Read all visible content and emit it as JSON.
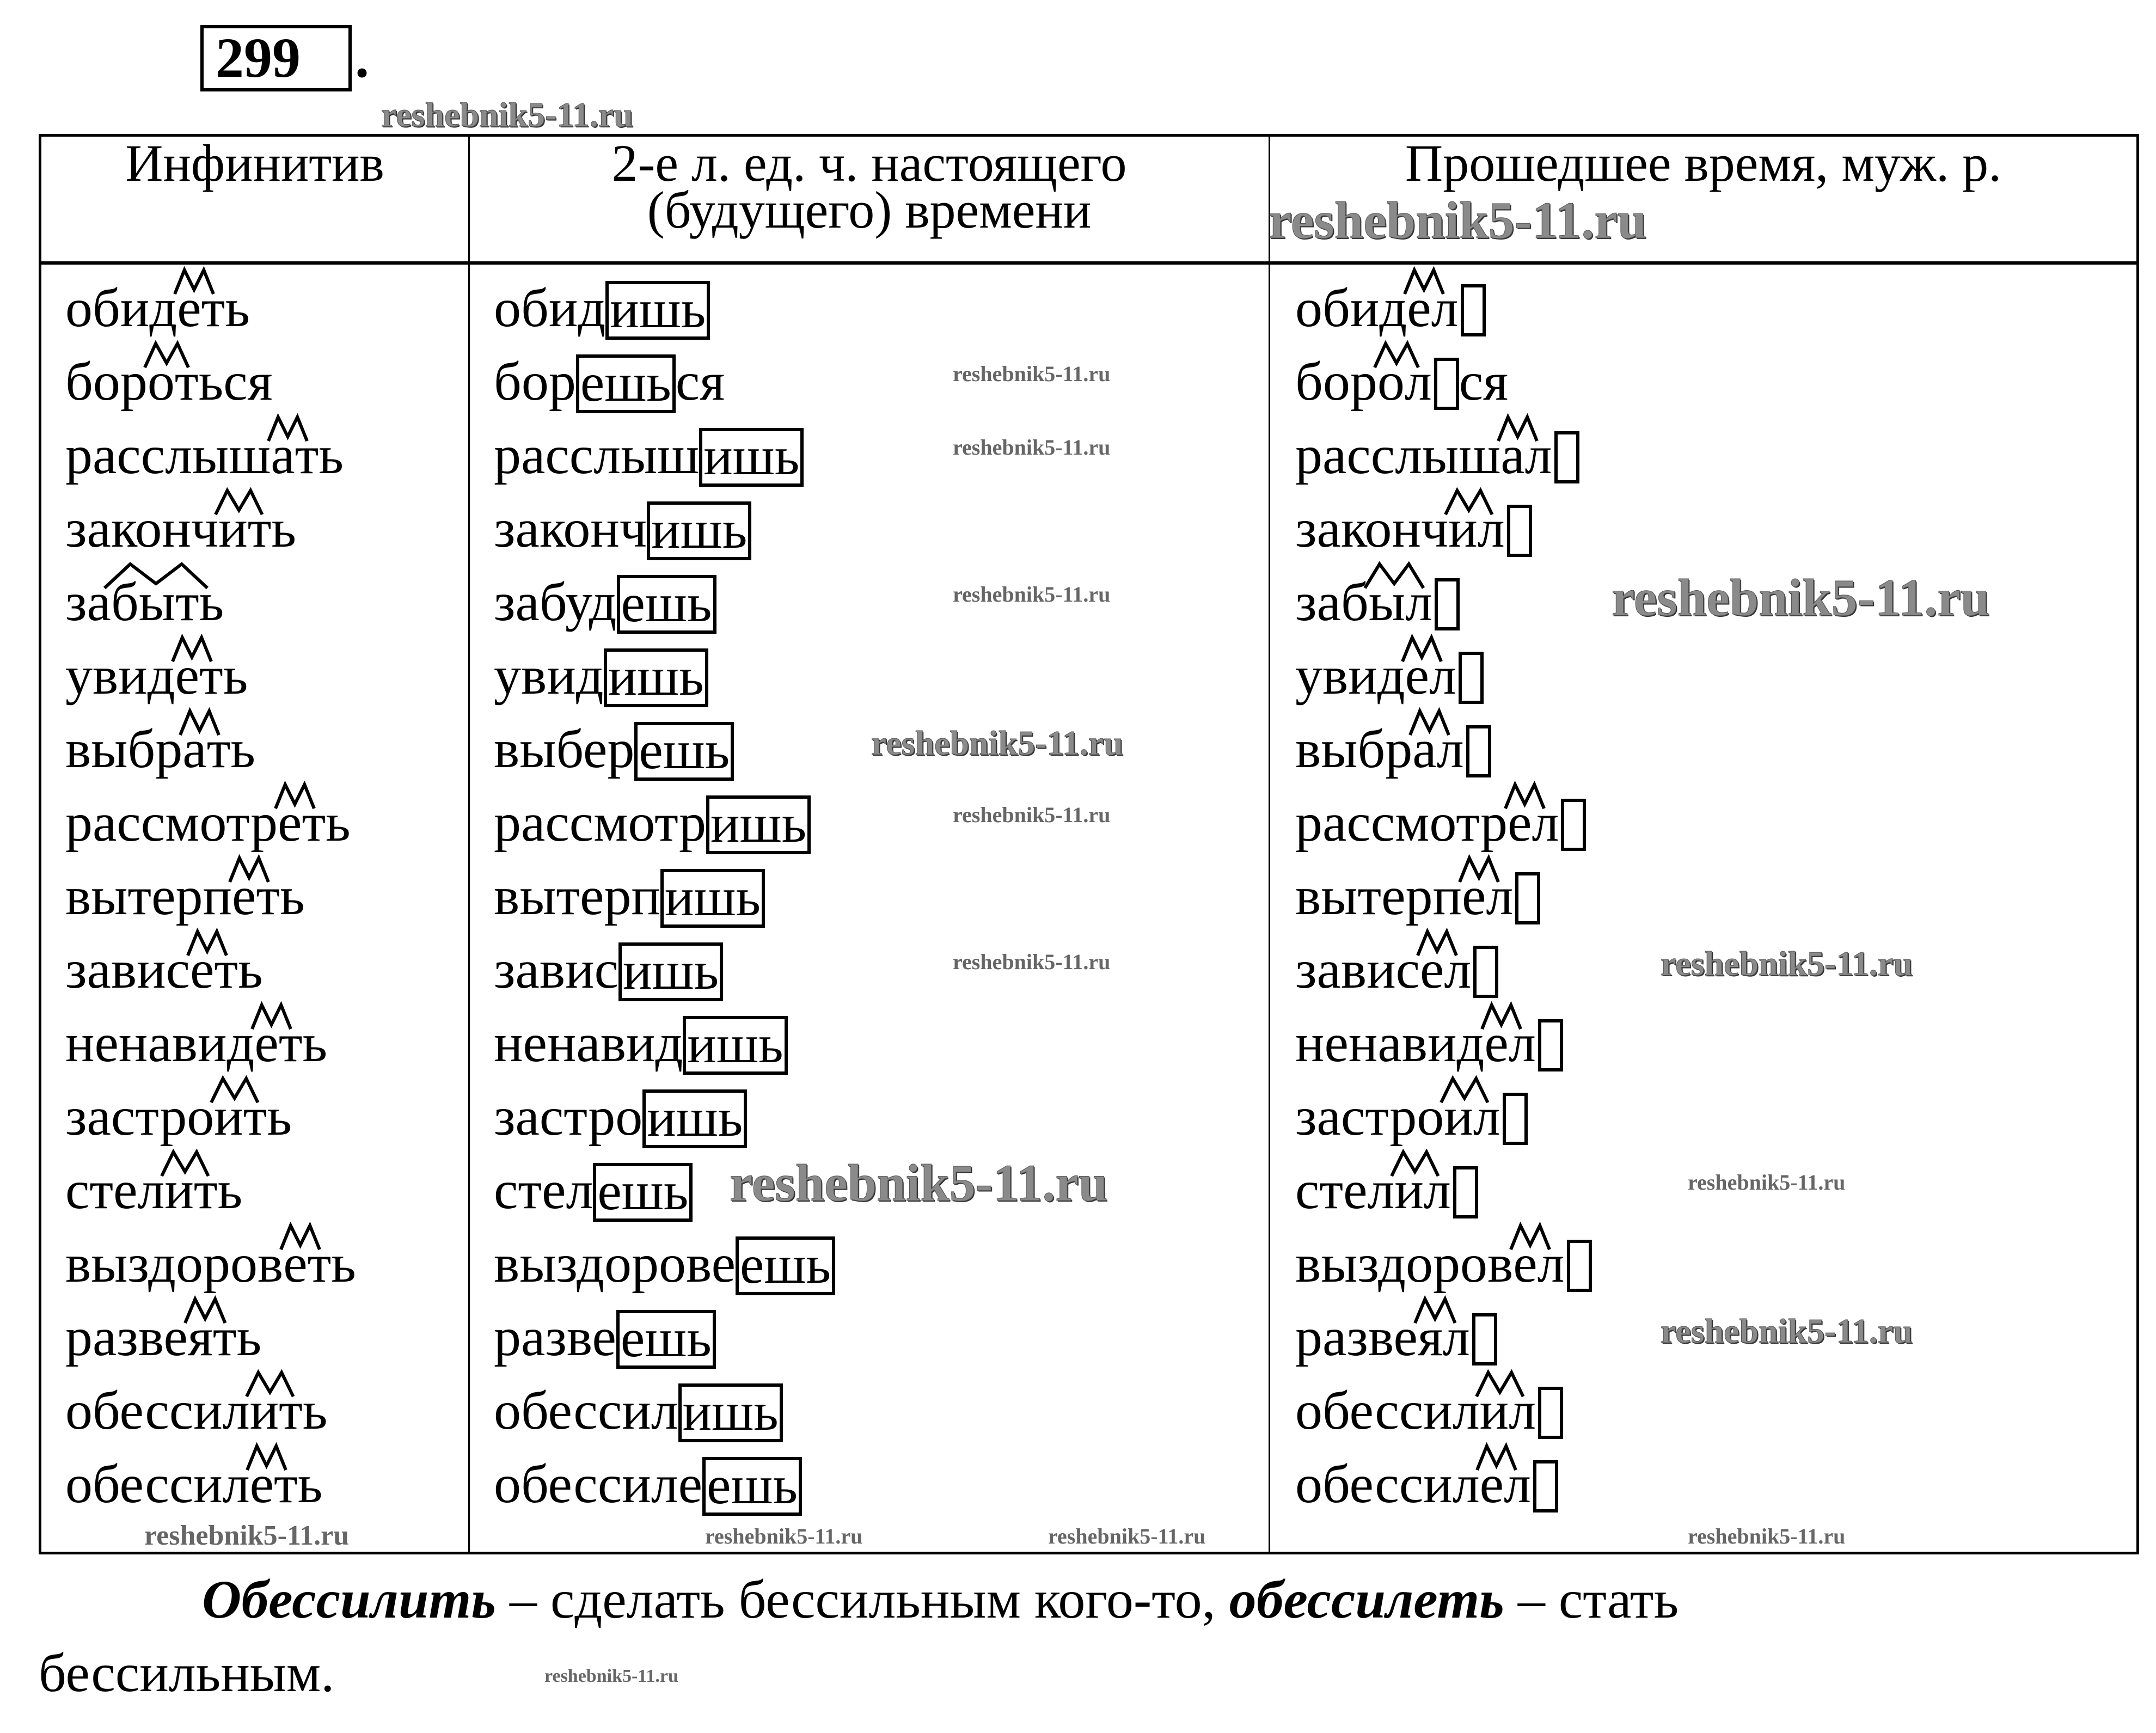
{
  "exercise_number": "299",
  "watermark": "reshebnik5-11.ru",
  "headers": [
    "Инфинитив",
    "2-е л. ед. ч. настоящего (будущего) времени",
    "Прошедшее время, муж. р."
  ],
  "rows": [
    {
      "inf": [
        "обид",
        "е",
        "ть"
      ],
      "pres": [
        "обид",
        "ишь",
        ""
      ],
      "past": [
        "обид",
        "е",
        "л",
        ""
      ]
    },
    {
      "inf": [
        "бор",
        "о",
        "ться"
      ],
      "pres": [
        "бор",
        "ешь",
        "ся"
      ],
      "past": [
        "бор",
        "о",
        "л",
        "ся"
      ]
    },
    {
      "inf": [
        "расслыш",
        "а",
        "ть"
      ],
      "pres": [
        "расслыш",
        "ишь",
        ""
      ],
      "past": [
        "расслыш",
        "а",
        "л",
        ""
      ]
    },
    {
      "inf": [
        "законч",
        "и",
        "ть"
      ],
      "pres": [
        "законч",
        "ишь",
        ""
      ],
      "past": [
        "законч",
        "и",
        "л",
        ""
      ]
    },
    {
      "inf": [
        "за",
        "бы",
        "ть"
      ],
      "pres": [
        "забуд",
        "ешь",
        ""
      ],
      "past": [
        "заб",
        "ы",
        "л",
        ""
      ]
    },
    {
      "inf": [
        "увид",
        "е",
        "ть"
      ],
      "pres": [
        "увид",
        "ишь",
        ""
      ],
      "past": [
        "увид",
        "е",
        "л",
        ""
      ]
    },
    {
      "inf": [
        "выбр",
        "а",
        "ть"
      ],
      "pres": [
        "выбер",
        "ешь",
        ""
      ],
      "past": [
        "выбр",
        "а",
        "л",
        ""
      ]
    },
    {
      "inf": [
        "рассмотр",
        "е",
        "ть"
      ],
      "pres": [
        "рассмотр",
        "ишь",
        ""
      ],
      "past": [
        "рассмотр",
        "е",
        "л",
        ""
      ]
    },
    {
      "inf": [
        "вытерп",
        "е",
        "ть"
      ],
      "pres": [
        "вытерп",
        "ишь",
        ""
      ],
      "past": [
        "вытерп",
        "е",
        "л",
        ""
      ]
    },
    {
      "inf": [
        "завис",
        "е",
        "ть"
      ],
      "pres": [
        "завис",
        "ишь",
        ""
      ],
      "past": [
        "завис",
        "е",
        "л",
        ""
      ]
    },
    {
      "inf": [
        "ненавид",
        "е",
        "ть"
      ],
      "pres": [
        "ненавид",
        "ишь",
        ""
      ],
      "past": [
        "ненавид",
        "е",
        "л",
        ""
      ]
    },
    {
      "inf": [
        "застро",
        "и",
        "ть"
      ],
      "pres": [
        "застро",
        "ишь",
        ""
      ],
      "past": [
        "застро",
        "и",
        "л",
        ""
      ]
    },
    {
      "inf": [
        "стел",
        "и",
        "ть"
      ],
      "pres": [
        "стел",
        "ешь",
        ""
      ],
      "past": [
        "стел",
        "и",
        "л",
        ""
      ]
    },
    {
      "inf": [
        "выздоров",
        "е",
        "ть"
      ],
      "pres": [
        "выздорове",
        "ешь",
        ""
      ],
      "past": [
        "выздоров",
        "е",
        "л",
        ""
      ]
    },
    {
      "inf": [
        "разве",
        "я",
        "ть"
      ],
      "pres": [
        "разве",
        "ешь",
        ""
      ],
      "past": [
        "разве",
        "я",
        "л",
        ""
      ]
    },
    {
      "inf": [
        "обессил",
        "и",
        "ть"
      ],
      "pres": [
        "обессил",
        "ишь",
        ""
      ],
      "past": [
        "обессил",
        "и",
        "л",
        ""
      ]
    },
    {
      "inf": [
        "обессил",
        "е",
        "ть"
      ],
      "pres": [
        "обессиле",
        "ешь",
        ""
      ],
      "past": [
        "обессил",
        "е",
        "л",
        ""
      ]
    }
  ],
  "footer": {
    "term1": "Обессилить",
    "def1": " – сделать бессильным кого-то, ",
    "term2": "обессилеть",
    "def2": " – стать",
    "line2": "бессильным."
  }
}
